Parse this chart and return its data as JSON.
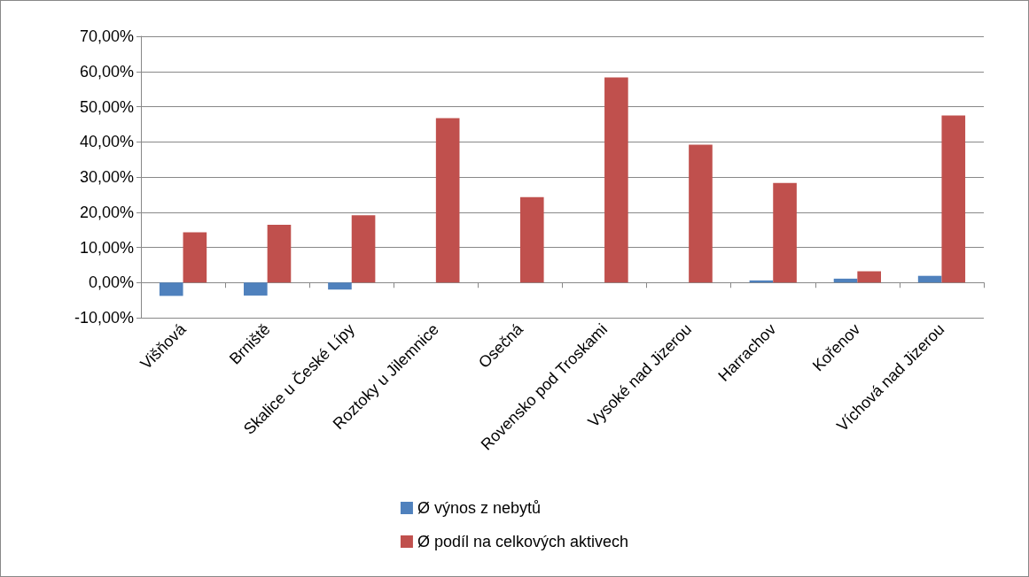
{
  "chart_data": {
    "type": "bar",
    "categories": [
      "Višňová",
      "Brniště",
      "Skalice u České Lípy",
      "Roztoky u Jilemnice",
      "Osečná",
      "Rovensko pod Troskami",
      "Vysoké nad Jizerou",
      "Harrachov",
      "Kořenov",
      "Víchová nad Jizerou"
    ],
    "series": [
      {
        "name": "Ø výnos z nebytů",
        "color": "#4f81bd",
        "values": [
          -3.8,
          -3.7,
          -2.0,
          0,
          0,
          0,
          0,
          0.6,
          1.1,
          1.9
        ]
      },
      {
        "name": "Ø podíl na celkových aktivech",
        "color": "#c0504d",
        "values": [
          14.3,
          16.4,
          19.1,
          46.7,
          24.3,
          58.3,
          39.2,
          28.3,
          3.2,
          47.5
        ]
      }
    ],
    "ylim": [
      -10,
      70
    ],
    "yticks": [
      {
        "value": -10,
        "label": "-10,00%"
      },
      {
        "value": 0,
        "label": "0,00%"
      },
      {
        "value": 10,
        "label": "10,00%"
      },
      {
        "value": 20,
        "label": "20,00%"
      },
      {
        "value": 30,
        "label": "30,00%"
      },
      {
        "value": 40,
        "label": "40,00%"
      },
      {
        "value": 50,
        "label": "50,00%"
      },
      {
        "value": 60,
        "label": "60,00%"
      },
      {
        "value": 70,
        "label": "70,00%"
      }
    ],
    "grid": "y",
    "legend": "bottom"
  }
}
